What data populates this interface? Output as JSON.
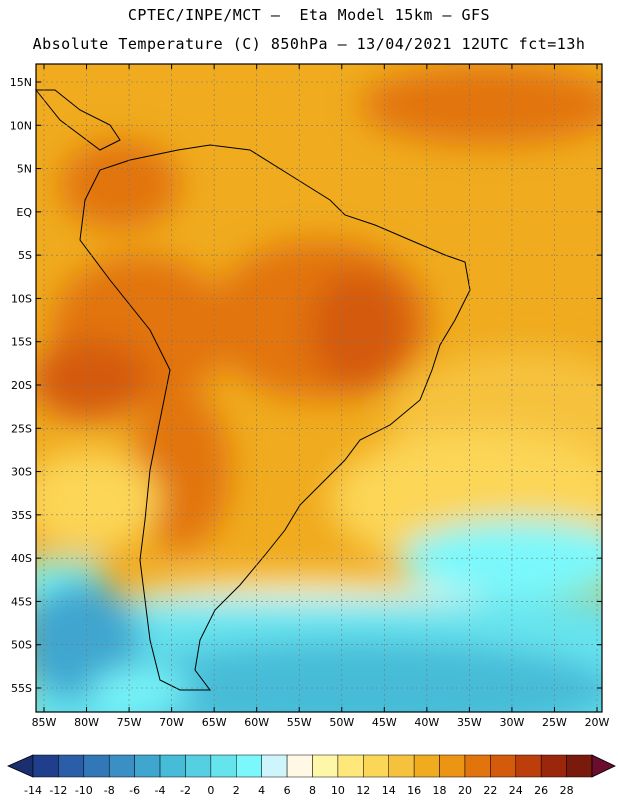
{
  "title_line1": "CPTEC/INPE/MCT –  Eta Model 15km – GFS",
  "title_line2": "Absolute Temperature (C) 850hPa – 13/04/2021 12UTC fct=13h",
  "lat_labels": [
    "15N",
    "10N",
    "5N",
    "EQ",
    "5S",
    "10S",
    "15S",
    "20S",
    "25S",
    "30S",
    "35S",
    "40S",
    "45S",
    "50S",
    "55S"
  ],
  "lat_values": [
    15,
    10,
    5,
    0,
    -5,
    -10,
    -15,
    -20,
    -25,
    -30,
    -35,
    -40,
    -45,
    -50,
    -55
  ],
  "lon_labels": [
    "85W",
    "80W",
    "75W",
    "70W",
    "65W",
    "60W",
    "55W",
    "50W",
    "45W",
    "40W",
    "35W",
    "30W",
    "25W",
    "20W"
  ],
  "lon_values": [
    -85,
    -80,
    -75,
    -70,
    -65,
    -60,
    -55,
    -50,
    -45,
    -40,
    -35,
    -30,
    -25,
    -20
  ],
  "colorbar": {
    "labels": [
      "-14",
      "-12",
      "-10",
      "-8",
      "-6",
      "-4",
      "-2",
      "0",
      "2",
      "4",
      "6",
      "8",
      "10",
      "12",
      "14",
      "16",
      "18",
      "20",
      "22",
      "24",
      "26",
      "28"
    ],
    "colors": [
      "#1f3e8c",
      "#2a5ea8",
      "#3278b8",
      "#3a8fc4",
      "#3fa6cf",
      "#47bcd8",
      "#55d0e2",
      "#66e4ee",
      "#7af8fb",
      "#cdf5fb",
      "#fff8e4",
      "#fff7a8",
      "#ffe87a",
      "#fcd657",
      "#f6c23e",
      "#f0ab1e",
      "#ec9413",
      "#e2740d",
      "#d45a0c",
      "#bb3e0b",
      "#9a260b",
      "#7a1a0c"
    ],
    "low_arrow_color": "#1b2f6f",
    "high_arrow_color": "#6a0d2f"
  }
}
